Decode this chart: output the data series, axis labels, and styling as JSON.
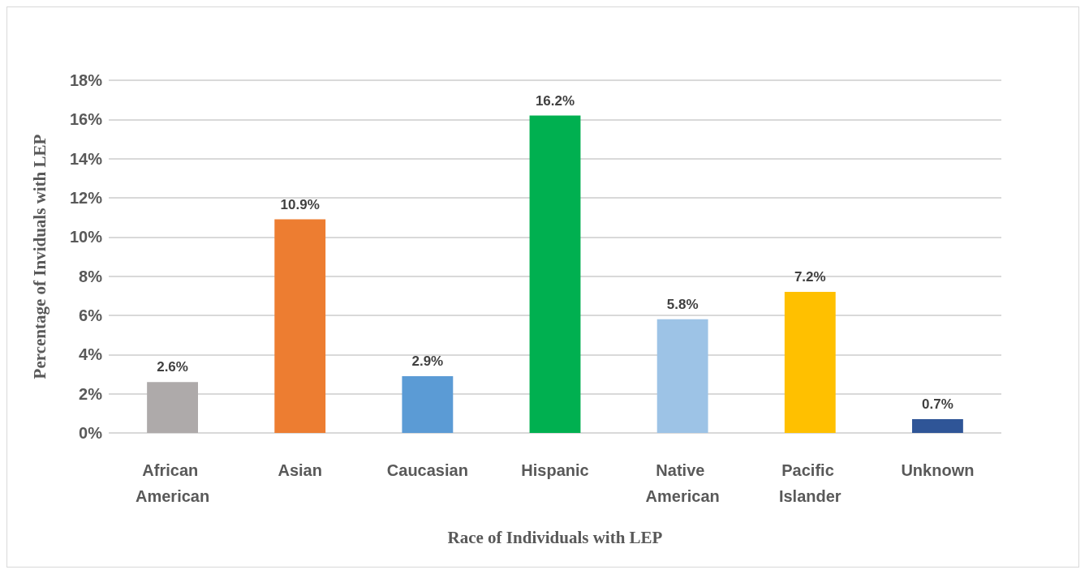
{
  "chart_data": {
    "type": "bar",
    "xlabel": "Race of Individuals with LEP",
    "ylabel": "Percentage of Inviduals with LEP",
    "categories": [
      "African American",
      "Asian",
      "Caucasian",
      "Hispanic",
      "Native American",
      "Pacific Islander",
      "Unknown"
    ],
    "values": [
      2.6,
      10.9,
      2.9,
      16.2,
      5.8,
      7.2,
      0.7
    ],
    "colors": [
      "#aeaaaa",
      "#ed7d31",
      "#5b9bd5",
      "#00b050",
      "#9dc3e6",
      "#ffc000",
      "#2f5597"
    ],
    "value_labels": [
      "2.6%",
      "10.9%",
      "2.9%",
      "16.2%",
      "5.8%",
      "7.2%",
      "0.7%"
    ],
    "ylim": [
      0,
      18
    ],
    "yticks": [
      {
        "value": 0,
        "label": "0%"
      },
      {
        "value": 2,
        "label": "2%"
      },
      {
        "value": 4,
        "label": "4%"
      },
      {
        "value": 6,
        "label": "6%"
      },
      {
        "value": 8,
        "label": "8%"
      },
      {
        "value": 10,
        "label": "10%"
      },
      {
        "value": 12,
        "label": "12%"
      },
      {
        "value": 14,
        "label": "14%"
      },
      {
        "value": 16,
        "label": "16%"
      },
      {
        "value": 18,
        "label": "18%"
      }
    ],
    "grid": "y"
  }
}
